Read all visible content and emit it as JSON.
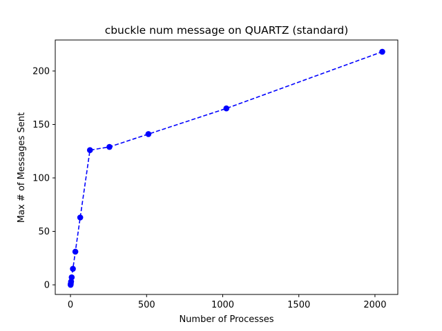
{
  "chart_data": {
    "type": "line",
    "title": "cbuckle num message on QUARTZ (standard)",
    "xlabel": "Number of Processes",
    "ylabel": "Max # of Messages Sent",
    "xlim": [
      -100,
      2150
    ],
    "ylim": [
      -9,
      229
    ],
    "x_ticks": [
      0,
      500,
      1000,
      1500,
      2000
    ],
    "y_ticks": [
      0,
      50,
      100,
      150,
      200
    ],
    "grid": false,
    "legend": "none",
    "series": [
      {
        "color": "#0000ff",
        "line_style": "dashed",
        "marker": "circle",
        "x": [
          1,
          2,
          4,
          8,
          16,
          32,
          64,
          128,
          256,
          512,
          1024,
          2048
        ],
        "y": [
          0,
          1,
          3,
          7,
          15,
          31,
          63,
          126,
          129,
          141,
          165,
          218
        ]
      }
    ]
  }
}
